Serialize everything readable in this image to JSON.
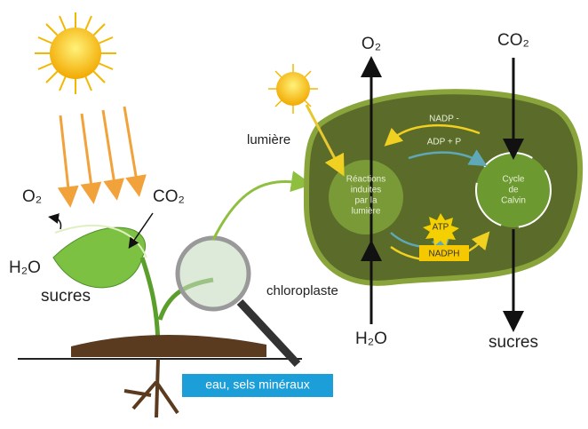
{
  "plant": {
    "o2": "O₂",
    "co2": "CO₂",
    "h2o": "H₂O",
    "sugars": "sucres",
    "soil_label": "eau, sels minéraux"
  },
  "chloroplast": {
    "light": "lumière",
    "label": "chloroplaste",
    "o2": "O₂",
    "co2": "CO₂",
    "h2o": "H₂O",
    "sugars": "sucres",
    "nadp": "NADP -",
    "adp": "ADP + P",
    "light_reactions": [
      "Réactions",
      "induites",
      "par la",
      "lumière"
    ],
    "calvin": [
      "Cycle",
      "de",
      "Calvin"
    ],
    "atp": "ATP",
    "nadph": "NADPH"
  }
}
